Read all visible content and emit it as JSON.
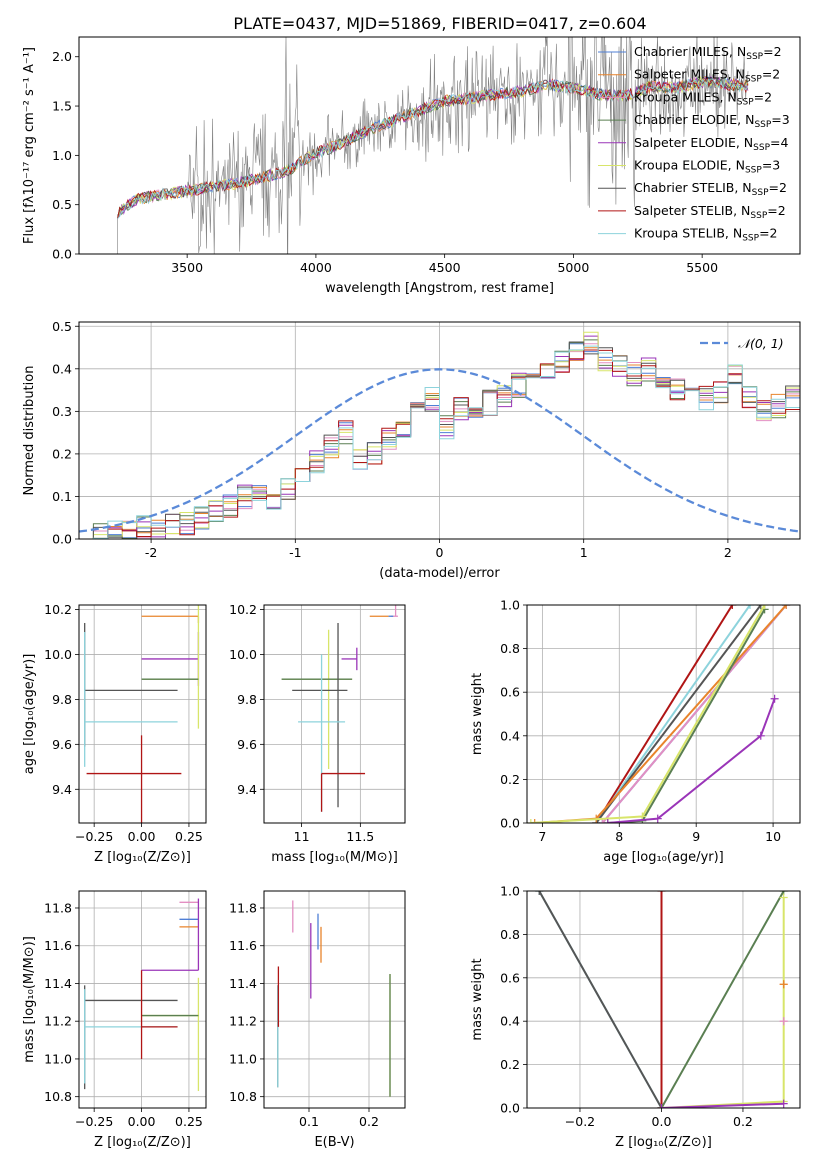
{
  "figure_title": "PLATE=0437, MJD=51869, FIBERID=0417, z=0.604",
  "colors": {
    "Chabrier MILES": "#4f7fd6",
    "Salpeter MILES": "#e8842c",
    "Kroupa MILES": "#e38fc2",
    "Chabrier ELODIE": "#5a7f52",
    "Salpeter ELODIE": "#9a35b8",
    "Kroupa ELODIE": "#d8e56a",
    "Chabrier STELIB": "#555555",
    "Salpeter STELIB": "#b01515",
    "Kroupa STELIB": "#8dd3dc",
    "data": "#808080",
    "gaussian": "#5b8ad8"
  },
  "chart_data": [
    {
      "id": "spectrum",
      "type": "line",
      "title": "PLATE=0437, MJD=51869, FIBERID=0417, z=0.604",
      "xlabel": "wavelength [Angstrom, rest frame]",
      "ylabel": "Flux [fλ10⁻¹⁷ erg cm⁻² s⁻¹ A⁻¹]",
      "xlim": [
        3080,
        5880
      ],
      "ylim": [
        0,
        2.2
      ],
      "xticks": [
        3500,
        4000,
        4500,
        5000,
        5500
      ],
      "yticks": [
        0.0,
        0.5,
        1.0,
        1.5,
        2.0
      ],
      "grid": false,
      "legend_position": "top-right",
      "legend": [
        "Chabrier MILES, N_SSP=2",
        "Salpeter MILES, N_SSP=2",
        "Kroupa MILES, N_SSP=2",
        "Chabrier ELODIE, N_SSP=3",
        "Salpeter ELODIE, N_SSP=4",
        "Kroupa ELODIE, N_SSP=3",
        "Chabrier STELIB, N_SSP=2",
        "Salpeter STELIB, N_SSP=2",
        "Kroupa STELIB, N_SSP=2"
      ],
      "continuum": {
        "x": [
          3230,
          3300,
          3400,
          3500,
          3600,
          3700,
          3800,
          3900,
          3950,
          4000,
          4100,
          4200,
          4300,
          4400,
          4500,
          4600,
          4700,
          4800,
          4900,
          5000,
          5100,
          5200,
          5300,
          5400,
          5500,
          5600,
          5680
        ],
        "y": [
          0.42,
          0.55,
          0.6,
          0.64,
          0.68,
          0.72,
          0.78,
          0.85,
          0.95,
          1.02,
          1.12,
          1.25,
          1.35,
          1.45,
          1.55,
          1.58,
          1.62,
          1.65,
          1.72,
          1.68,
          1.62,
          1.6,
          1.7,
          1.68,
          1.75,
          1.72,
          1.7
        ]
      }
    },
    {
      "id": "residuals",
      "type": "histogram",
      "xlabel": "(data-model)/error",
      "ylabel": "Normed distribution",
      "xlim": [
        -2.5,
        2.5
      ],
      "ylim": [
        0,
        0.51
      ],
      "xticks": [
        -2,
        -1,
        0,
        1,
        2
      ],
      "yticks": [
        0.0,
        0.1,
        0.2,
        0.3,
        0.4,
        0.5
      ],
      "grid": true,
      "legend_position": "top-right",
      "legend": [
        "𝒩(0, 1)"
      ],
      "bin_width": 0.1,
      "bins_start": -2.5,
      "hist_base": [
        0.01,
        0.01,
        0.015,
        0.02,
        0.025,
        0.02,
        0.03,
        0.04,
        0.05,
        0.06,
        0.08,
        0.1,
        0.11,
        0.1,
        0.12,
        0.14,
        0.18,
        0.22,
        0.25,
        0.19,
        0.2,
        0.24,
        0.26,
        0.3,
        0.33,
        0.26,
        0.31,
        0.3,
        0.32,
        0.34,
        0.36,
        0.38,
        0.4,
        0.42,
        0.44,
        0.46,
        0.42,
        0.41,
        0.39,
        0.4,
        0.37,
        0.35,
        0.36,
        0.33,
        0.35,
        0.38,
        0.33,
        0.3,
        0.31,
        0.33,
        0.29,
        0.28,
        0.27,
        0.26,
        0.25,
        0.24,
        0.26,
        0.21,
        0.19,
        0.2,
        0.17,
        0.15,
        0.16,
        0.13,
        0.12,
        0.1,
        0.09,
        0.08,
        0.07,
        0.06
      ]
    },
    {
      "id": "age-vs-Z",
      "type": "scatter",
      "xlabel": "Z [log₁₀(Z/Z⊙)]",
      "ylabel": "age  [log₁₀(age/yr)]",
      "xlim": [
        -0.33,
        0.34
      ],
      "ylim": [
        9.25,
        10.22
      ],
      "xticks": [
        -0.25,
        0.0,
        0.25
      ],
      "xticklabels": [
        "−0.25",
        "0.00",
        "0.25"
      ],
      "yticks": [
        9.4,
        9.6,
        9.8,
        10.0,
        10.2
      ],
      "grid": true,
      "points": [
        {
          "model": "Salpeter MILES",
          "x": 0.3,
          "y": 10.17,
          "xerr": [
            0.3,
            0.0
          ],
          "yerr": [
            0.03,
            0.0
          ]
        },
        {
          "model": "Salpeter ELODIE",
          "x": 0.3,
          "y": 9.98,
          "xerr": [
            0.3,
            0.0
          ],
          "yerr": [
            0.12,
            0.12
          ]
        },
        {
          "model": "Kroupa ELODIE",
          "x": 0.3,
          "y": 9.89,
          "xerr": [
            0.3,
            0.0
          ],
          "yerr": [
            0.22,
            0.43
          ]
        },
        {
          "model": "Chabrier ELODIE",
          "x": 0.0,
          "y": 9.89,
          "xerr": [
            0.0,
            0.3
          ],
          "yerr": [
            0.0,
            0.0
          ]
        },
        {
          "model": "Chabrier STELIB",
          "x": -0.3,
          "y": 9.84,
          "xerr": [
            0.0,
            0.49
          ],
          "yerr": [
            0.25,
            0.3
          ]
        },
        {
          "model": "Kroupa STELIB",
          "x": -0.3,
          "y": 9.7,
          "xerr": [
            0.0,
            0.49
          ],
          "yerr": [
            0.2,
            0.4
          ]
        },
        {
          "model": "Salpeter STELIB",
          "x": 0.0,
          "y": 9.47,
          "xerr": [
            0.29,
            0.21
          ],
          "yerr": [
            0.25,
            0.17
          ]
        }
      ]
    },
    {
      "id": "age-vs-mass",
      "type": "scatter",
      "xlabel": "mass [log₁₀(M/M⊙)]",
      "ylabel": "",
      "xlim": [
        10.68,
        11.88
      ],
      "ylim": [
        9.25,
        10.22
      ],
      "xticks": [
        11.0,
        11.5
      ],
      "yticks": [
        9.4,
        9.6,
        9.8,
        10.0,
        10.2
      ],
      "grid": true,
      "points": [
        {
          "model": "Salpeter MILES",
          "x": 11.7,
          "y": 10.17,
          "xerr": [
            0.12,
            0.04
          ],
          "yerr": [
            0.0,
            0.0
          ]
        },
        {
          "model": "Kroupa MILES",
          "x": 11.8,
          "y": 10.17,
          "xerr": [
            0.04,
            0.02
          ],
          "yerr": [
            0.0,
            0.2
          ]
        },
        {
          "model": "Chabrier MILES",
          "x": 11.74,
          "y": 10.17,
          "xerr": [
            0.0,
            0.04
          ],
          "yerr": [
            0.0,
            0.0
          ]
        },
        {
          "model": "Salpeter ELODIE",
          "x": 11.47,
          "y": 9.98,
          "xerr": [
            0.13,
            0.0
          ],
          "yerr": [
            0.05,
            0.05
          ]
        },
        {
          "model": "Kroupa ELODIE",
          "x": 11.23,
          "y": 9.89,
          "xerr": [
            0.4,
            0.2
          ],
          "yerr": [
            0.4,
            0.22
          ]
        },
        {
          "model": "Chabrier ELODIE",
          "x": 11.23,
          "y": 9.89,
          "xerr": [
            0.4,
            0.2
          ],
          "yerr": [
            0.0,
            0.0
          ]
        },
        {
          "model": "Chabrier STELIB",
          "x": 11.31,
          "y": 9.84,
          "xerr": [
            0.39,
            0.08
          ],
          "yerr": [
            0.52,
            0.3
          ]
        },
        {
          "model": "Kroupa STELIB",
          "x": 11.17,
          "y": 9.7,
          "xerr": [
            0.2,
            0.2
          ],
          "yerr": [
            0.4,
            0.3
          ]
        },
        {
          "model": "Salpeter STELIB",
          "x": 11.17,
          "y": 9.47,
          "xerr": [
            0.0,
            0.37
          ],
          "yerr": [
            0.17,
            0.0
          ]
        }
      ]
    },
    {
      "id": "mass-weight-vs-age",
      "type": "line",
      "xlabel": "age  [log₁₀(age/yr)]",
      "ylabel": "mass weight",
      "xlim": [
        6.8,
        10.35
      ],
      "ylim": [
        0.0,
        1.0
      ],
      "xticks": [
        7,
        8,
        9,
        10
      ],
      "yticks": [
        0.0,
        0.2,
        0.4,
        0.6,
        0.8,
        1.0
      ],
      "grid": true,
      "series": [
        {
          "model": "Salpeter STELIB",
          "x": [
            7.7,
            9.47
          ],
          "y": [
            0.0,
            1.0
          ]
        },
        {
          "model": "Kroupa STELIB",
          "x": [
            7.7,
            9.7
          ],
          "y": [
            0.0,
            1.0
          ]
        },
        {
          "model": "Chabrier STELIB",
          "x": [
            7.7,
            9.84
          ],
          "y": [
            0.0,
            1.0
          ]
        },
        {
          "model": "Chabrier MILES",
          "x": [
            7.78,
            10.17
          ],
          "y": [
            0.0,
            1.0
          ]
        },
        {
          "model": "Kroupa MILES",
          "x": [
            7.78,
            10.17
          ],
          "y": [
            0.0,
            1.0
          ]
        },
        {
          "model": "Salpeter MILES",
          "x": [
            6.9,
            7.7,
            10.17
          ],
          "y": [
            0.0,
            0.02,
            1.0
          ]
        },
        {
          "model": "Chabrier ELODIE",
          "x": [
            7.85,
            8.3,
            9.89
          ],
          "y": [
            0.0,
            0.01,
            0.98
          ]
        },
        {
          "model": "Kroupa ELODIE",
          "x": [
            6.85,
            8.3,
            9.89
          ],
          "y": [
            0.0,
            0.03,
            1.0
          ]
        },
        {
          "model": "Salpeter ELODIE",
          "x": [
            7.85,
            8.5,
            9.84,
            10.02
          ],
          "y": [
            0.0,
            0.02,
            0.4,
            0.57
          ]
        }
      ]
    },
    {
      "id": "mass-vs-Z",
      "type": "scatter",
      "xlabel": "Z [log₁₀(Z/Z⊙)]",
      "ylabel": "mass [log₁₀(M/M⊙)]",
      "xlim": [
        -0.33,
        0.34
      ],
      "ylim": [
        10.74,
        11.89
      ],
      "xticks": [
        -0.25,
        0.0,
        0.25
      ],
      "xticklabels": [
        "−0.25",
        "0.00",
        "0.25"
      ],
      "yticks": [
        10.8,
        11.0,
        11.2,
        11.4,
        11.6,
        11.8
      ],
      "grid": true,
      "points": [
        {
          "model": "Kroupa MILES",
          "x": 0.3,
          "y": 11.83,
          "xerr": [
            0.1,
            0.0
          ],
          "yerr": [
            0.0,
            0.0
          ]
        },
        {
          "model": "Chabrier MILES",
          "x": 0.3,
          "y": 11.74,
          "xerr": [
            0.1,
            0.0
          ],
          "yerr": [
            0.0,
            0.0
          ]
        },
        {
          "model": "Salpeter MILES",
          "x": 0.3,
          "y": 11.7,
          "xerr": [
            0.1,
            0.0
          ],
          "yerr": [
            0.0,
            0.0
          ]
        },
        {
          "model": "Salpeter ELODIE",
          "x": 0.3,
          "y": 11.47,
          "xerr": [
            0.3,
            0.0
          ],
          "yerr": [
            0.0,
            0.38
          ]
        },
        {
          "model": "Kroupa ELODIE",
          "x": 0.3,
          "y": 11.23,
          "xerr": [
            0.3,
            0.0
          ],
          "yerr": [
            0.4,
            0.2
          ]
        },
        {
          "model": "Chabrier ELODIE",
          "x": 0.0,
          "y": 11.23,
          "xerr": [
            0.0,
            0.3
          ],
          "yerr": [
            0.0,
            0.0
          ]
        },
        {
          "model": "Chabrier STELIB",
          "x": -0.3,
          "y": 11.31,
          "xerr": [
            0.0,
            0.49
          ],
          "yerr": [
            0.47,
            0.08
          ]
        },
        {
          "model": "Kroupa STELIB",
          "x": -0.3,
          "y": 11.17,
          "xerr": [
            0.0,
            0.49
          ],
          "yerr": [
            0.3,
            0.2
          ]
        },
        {
          "model": "Salpeter STELIB",
          "x": 0.0,
          "y": 11.17,
          "xerr": [
            0.0,
            0.19
          ],
          "yerr": [
            0.17,
            0.3
          ]
        }
      ]
    },
    {
      "id": "mass-vs-EBV",
      "type": "scatter",
      "xlabel": "E(B-V)",
      "ylabel": "",
      "xlim": [
        0.025,
        0.26
      ],
      "ylim": [
        10.74,
        11.89
      ],
      "xticks": [
        0.1,
        0.2
      ],
      "yticks": [
        10.8,
        11.0,
        11.2,
        11.4,
        11.6,
        11.8
      ],
      "grid": true,
      "points": [
        {
          "model": "Kroupa MILES",
          "x": 0.073,
          "y": 11.75,
          "xerr": [
            0.0,
            0.0
          ],
          "yerr": [
            0.08,
            0.09
          ]
        },
        {
          "model": "Chabrier MILES",
          "x": 0.115,
          "y": 11.7,
          "xerr": [
            0.0,
            0.0
          ],
          "yerr": [
            0.12,
            0.07
          ]
        },
        {
          "model": "Salpeter MILES",
          "x": 0.12,
          "y": 11.63,
          "xerr": [
            0.0,
            0.0
          ],
          "yerr": [
            0.12,
            0.07
          ]
        },
        {
          "model": "Salpeter ELODIE",
          "x": 0.103,
          "y": 11.52,
          "xerr": [
            0.0,
            0.0
          ],
          "yerr": [
            0.2,
            0.2
          ]
        },
        {
          "model": "Kroupa ELODIE",
          "x": 0.235,
          "y": 11.1,
          "xerr": [
            0.0,
            0.0
          ],
          "yerr": [
            0.3,
            0.35
          ]
        },
        {
          "model": "Chabrier ELODIE",
          "x": 0.235,
          "y": 11.1,
          "xerr": [
            0.0,
            0.0
          ],
          "yerr": [
            0.3,
            0.35
          ]
        },
        {
          "model": "Chabrier STELIB",
          "x": 0.048,
          "y": 11.1,
          "xerr": [
            0.0,
            0.0
          ],
          "yerr": [
            0.25,
            0.29
          ]
        },
        {
          "model": "Kroupa STELIB",
          "x": 0.048,
          "y": 11.1,
          "xerr": [
            0.0,
            0.0
          ],
          "yerr": [
            0.25,
            0.29
          ]
        },
        {
          "model": "Salpeter STELIB",
          "x": 0.049,
          "y": 11.27,
          "xerr": [
            0.0,
            0.0
          ],
          "yerr": [
            0.1,
            0.22
          ]
        }
      ]
    },
    {
      "id": "mass-weight-vs-Z",
      "type": "line",
      "xlabel": "Z [log₁₀(Z/Z⊙)]",
      "ylabel": "mass weight",
      "xlim": [
        -0.33,
        0.34
      ],
      "ylim": [
        0.0,
        1.0
      ],
      "xticks": [
        -0.2,
        0.0,
        0.2
      ],
      "xticklabels": [
        "−0.2",
        "0.0",
        "0.2"
      ],
      "yticks": [
        0.0,
        0.2,
        0.4,
        0.6,
        0.8,
        1.0
      ],
      "grid": true,
      "series": [
        {
          "model": "Kroupa STELIB",
          "x": [
            -0.3,
            0.0
          ],
          "y": [
            1.0,
            0.0
          ]
        },
        {
          "model": "Chabrier STELIB",
          "x": [
            -0.3,
            0.0
          ],
          "y": [
            1.0,
            0.0
          ]
        },
        {
          "model": "Salpeter STELIB",
          "x": [
            0.0,
            0.0
          ],
          "y": [
            0.0,
            1.0
          ]
        },
        {
          "model": "Chabrier ELODIE",
          "x": [
            0.0,
            0.3
          ],
          "y": [
            0.0,
            1.0
          ]
        },
        {
          "model": "Kroupa ELODIE",
          "x": [
            0.0,
            0.3,
            0.3
          ],
          "y": [
            0.0,
            0.03,
            0.97
          ]
        },
        {
          "model": "Salpeter ELODIE",
          "x": [
            0.0,
            0.3
          ],
          "y": [
            0.0,
            0.02
          ]
        },
        {
          "model": "Kroupa MILES",
          "x": [
            0.3,
            0.3
          ],
          "y": [
            0.4,
            0.4
          ]
        },
        {
          "model": "Salpeter MILES",
          "x": [
            0.3,
            0.3
          ],
          "y": [
            0.57,
            0.57
          ]
        }
      ]
    }
  ]
}
